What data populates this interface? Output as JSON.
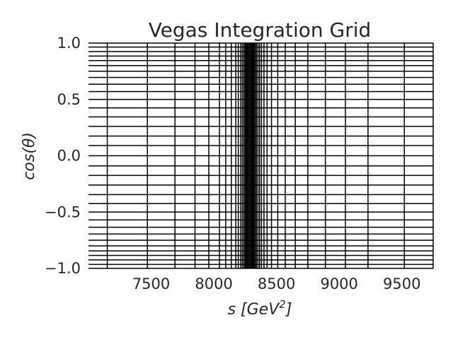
{
  "chart_data": {
    "type": "line",
    "title": "Vegas Integration Grid",
    "xlabel": {
      "base": "s [GeV",
      "sup": "2",
      "close": "]"
    },
    "ylabel": "cos(θ)",
    "xlim": [
      7000,
      9750
    ],
    "ylim": [
      -1.0,
      1.0
    ],
    "x_ticks": [
      7500,
      8000,
      8500,
      9000,
      9500
    ],
    "x_tick_labels": [
      "7500",
      "8000",
      "8500",
      "9000",
      "9500"
    ],
    "y_ticks": [
      -1.0,
      -0.5,
      0.0,
      0.5,
      1.0
    ],
    "y_tick_labels": [
      "−1.0",
      "−0.5",
      "0.0",
      "0.5",
      "1.0"
    ],
    "line_color": "#000000",
    "grid": false,
    "vertical_lines_s": [
      7150,
      7470,
      7690,
      7850,
      7960,
      8045,
      8095,
      8140,
      8175,
      8195,
      8215,
      8228,
      8240,
      8250,
      8258,
      8266,
      8274,
      8282,
      8290,
      8298,
      8306,
      8314,
      8322,
      8330,
      8340,
      8352,
      8365,
      8380,
      8400,
      8425,
      8460,
      8510,
      8570,
      8650,
      8750,
      8890,
      9050,
      9230,
      9520,
      9750
    ],
    "horizontal_lines_cos_theta": [
      -1.0,
      -0.965,
      -0.925,
      -0.885,
      -0.845,
      -0.8,
      -0.75,
      -0.695,
      -0.635,
      -0.57,
      -0.5,
      -0.425,
      -0.345,
      -0.26,
      -0.175,
      -0.09,
      0.0,
      0.09,
      0.175,
      0.26,
      0.345,
      0.425,
      0.5,
      0.57,
      0.635,
      0.695,
      0.75,
      0.8,
      0.845,
      0.885,
      0.925,
      0.965,
      1.0
    ]
  }
}
